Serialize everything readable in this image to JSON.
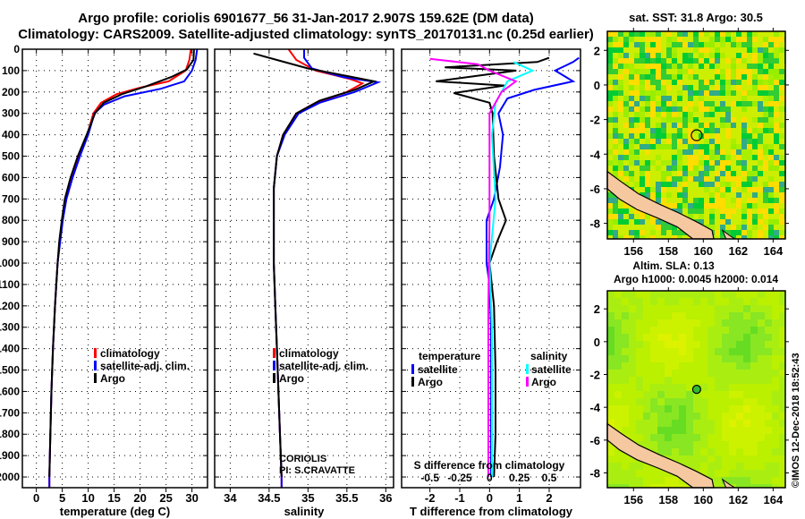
{
  "title_line1": "Argo profile: coriolis 6901677_56 31-Jan-2017 2.907S 159.62E (DM data)",
  "title_line2": "Climatology: CARS2009. Satellite-adjusted climatology: synTS_20170131.nc (0.25d earlier)",
  "copyright": "©IMOS 12-Dec-2018 18:52:43",
  "colors": {
    "climatology": "#ff0000",
    "satellite": "#0000ff",
    "argo": "#000000",
    "s_satellite": "#00ffff",
    "s_argo": "#ff00ff"
  },
  "chart_data": [
    {
      "type": "line",
      "name": "temperature",
      "xlabel": "temperature (deg C)",
      "ylim": [
        2050,
        0
      ],
      "xlim": [
        -2.7,
        33
      ],
      "xticks": [
        "0",
        "5",
        "10",
        "15",
        "20",
        "25",
        "30"
      ],
      "xtick_values": [
        0,
        5,
        10,
        15,
        20,
        25,
        30
      ],
      "yticks": [
        "0",
        "100",
        "200",
        "300",
        "400",
        "500",
        "600",
        "700",
        "800",
        "900",
        "1000",
        "1100",
        "1200",
        "1300",
        "1400",
        "1500",
        "1600",
        "1700",
        "1800",
        "1900",
        "2000"
      ],
      "legend": [
        "climatology",
        "satellite-adj. clim.",
        "Argo"
      ],
      "series": [
        {
          "name": "climatology",
          "color": "#ff0000",
          "points": [
            [
              29.8,
              0
            ],
            [
              29.5,
              50
            ],
            [
              28.8,
              100
            ],
            [
              25.5,
              150
            ],
            [
              20,
              180
            ],
            [
              15.5,
              210
            ],
            [
              12.5,
              250
            ],
            [
              11,
              300
            ],
            [
              9.8,
              400
            ],
            [
              8.2,
              500
            ],
            [
              6.8,
              600
            ],
            [
              5.6,
              700
            ],
            [
              5,
              800
            ],
            [
              4.5,
              900
            ],
            [
              4.1,
              1000
            ],
            [
              3.6,
              1200
            ],
            [
              3.2,
              1400
            ],
            [
              2.9,
              1600
            ],
            [
              2.7,
              1800
            ],
            [
              2.5,
              2000
            ],
            [
              2.5,
              2050
            ]
          ]
        },
        {
          "name": "satellite-adj. clim.",
          "color": "#0000ff",
          "points": [
            [
              31,
              0
            ],
            [
              30.7,
              50
            ],
            [
              30,
              100
            ],
            [
              28.5,
              150
            ],
            [
              24,
              185
            ],
            [
              17,
              220
            ],
            [
              13,
              260
            ],
            [
              11.2,
              300
            ],
            [
              10,
              400
            ],
            [
              8.4,
              500
            ],
            [
              7,
              600
            ],
            [
              5.8,
              700
            ],
            [
              5.1,
              800
            ],
            [
              4.6,
              900
            ],
            [
              4.1,
              1000
            ],
            [
              3.6,
              1200
            ],
            [
              3.2,
              1400
            ],
            [
              2.9,
              1600
            ],
            [
              2.7,
              1800
            ],
            [
              2.5,
              2000
            ],
            [
              2.5,
              2050
            ]
          ]
        },
        {
          "name": "Argo",
          "color": "#000000",
          "points": [
            [
              30.4,
              0
            ],
            [
              30.3,
              50
            ],
            [
              29,
              95
            ],
            [
              26,
              130
            ],
            [
              21,
              175
            ],
            [
              16.5,
              210
            ],
            [
              13,
              250
            ],
            [
              11.3,
              300
            ],
            [
              9.7,
              400
            ],
            [
              8,
              500
            ],
            [
              6.6,
              600
            ],
            [
              5.5,
              700
            ],
            [
              4.9,
              800
            ],
            [
              4.4,
              900
            ],
            [
              4.1,
              1000
            ],
            [
              3.6,
              1200
            ],
            [
              3.2,
              1400
            ],
            [
              2.9,
              1600
            ],
            [
              2.7,
              1800
            ],
            [
              2.5,
              2000
            ]
          ]
        }
      ]
    },
    {
      "type": "line",
      "name": "salinity",
      "xlabel": "salinity",
      "ylim": [
        2050,
        0
      ],
      "xlim": [
        33.8,
        36.1
      ],
      "xticks": [
        "34",
        "34.5",
        "35",
        "35.5",
        "36"
      ],
      "xtick_values": [
        34,
        34.5,
        35,
        35.5,
        36
      ],
      "legend": [
        "climatology",
        "satellite-adj. clim.",
        "Argo"
      ],
      "annotation": [
        "CORIOLIS",
        "PI: S.CRAVATTE"
      ],
      "series": [
        {
          "name": "climatology",
          "color": "#ff0000",
          "points": [
            [
              34.75,
              0
            ],
            [
              34.85,
              50
            ],
            [
              35.1,
              100
            ],
            [
              35.55,
              140
            ],
            [
              35.7,
              160
            ],
            [
              35.5,
              200
            ],
            [
              35.1,
              250
            ],
            [
              34.85,
              300
            ],
            [
              34.68,
              400
            ],
            [
              34.6,
              500
            ],
            [
              34.56,
              650
            ],
            [
              34.56,
              800
            ],
            [
              34.56,
              1000
            ],
            [
              34.58,
              1200
            ],
            [
              34.6,
              1400
            ],
            [
              34.62,
              1600
            ],
            [
              34.64,
              1800
            ],
            [
              34.66,
              2000
            ],
            [
              34.66,
              2050
            ]
          ]
        },
        {
          "name": "satellite-adj. clim.",
          "color": "#0000ff",
          "points": [
            [
              34.95,
              0
            ],
            [
              34.95,
              40
            ],
            [
              35.05,
              90
            ],
            [
              35.45,
              130
            ],
            [
              35.9,
              155
            ],
            [
              35.6,
              200
            ],
            [
              35.15,
              250
            ],
            [
              34.88,
              300
            ],
            [
              34.7,
              400
            ],
            [
              34.6,
              500
            ],
            [
              34.56,
              650
            ],
            [
              34.56,
              800
            ],
            [
              34.56,
              1000
            ],
            [
              34.58,
              1200
            ],
            [
              34.6,
              1400
            ],
            [
              34.62,
              1600
            ],
            [
              34.64,
              1800
            ],
            [
              34.66,
              2000
            ],
            [
              34.66,
              2050
            ]
          ]
        },
        {
          "name": "Argo",
          "color": "#000000",
          "points": [
            [
              34.3,
              20
            ],
            [
              34.6,
              50
            ],
            [
              35.0,
              90
            ],
            [
              35.5,
              125
            ],
            [
              35.85,
              150
            ],
            [
              35.6,
              190
            ],
            [
              35.15,
              240
            ],
            [
              34.85,
              300
            ],
            [
              34.68,
              400
            ],
            [
              34.6,
              500
            ],
            [
              34.56,
              650
            ],
            [
              34.56,
              800
            ],
            [
              34.56,
              1000
            ],
            [
              34.58,
              1200
            ],
            [
              34.6,
              1400
            ],
            [
              34.62,
              1600
            ],
            [
              34.64,
              1800
            ],
            [
              34.66,
              2000
            ]
          ]
        }
      ]
    },
    {
      "type": "line",
      "name": "differences",
      "xlabel": "T difference from climatology",
      "xlabel_top": "S difference from climatology",
      "ylim": [
        2050,
        0
      ],
      "xlim": [
        -2.95,
        3.05
      ],
      "xticks": [
        "-2",
        "-1",
        "0",
        "1",
        "2"
      ],
      "xtick_values": [
        -2,
        -1,
        0,
        1,
        2
      ],
      "s_ticks": [
        "-0.5",
        "-0.25",
        "0",
        "0.25",
        "0.5"
      ],
      "s_tick_values": [
        -0.5,
        -0.25,
        0,
        0.25,
        0.5
      ],
      "legend_temperature": {
        "title": "temperature",
        "items": [
          "satellite",
          "Argo"
        ]
      },
      "legend_salinity": {
        "title": "salinity",
        "items": [
          "satellite",
          "Argo"
        ]
      },
      "series": [
        {
          "name": "T satellite",
          "color": "#0000ff",
          "units": "T",
          "points": [
            [
              3,
              40
            ],
            [
              2.8,
              60
            ],
            [
              2.2,
              100
            ],
            [
              2.8,
              150
            ],
            [
              1.5,
              190
            ],
            [
              0.6,
              230
            ],
            [
              0.3,
              300
            ],
            [
              0.45,
              400
            ],
            [
              0.35,
              550
            ],
            [
              0.15,
              700
            ],
            [
              -0.1,
              800
            ],
            [
              -0.1,
              1000
            ],
            [
              0,
              1100
            ],
            [
              0.05,
              1300
            ],
            [
              0.05,
              1600
            ],
            [
              0.05,
              2000
            ]
          ]
        },
        {
          "name": "T Argo",
          "color": "#000000",
          "units": "T",
          "points": [
            [
              2,
              40
            ],
            [
              1.6,
              60
            ],
            [
              -1.5,
              85
            ],
            [
              0.9,
              100
            ],
            [
              -1.8,
              150
            ],
            [
              0.5,
              170
            ],
            [
              -1.2,
              205
            ],
            [
              0,
              250
            ],
            [
              0.1,
              300
            ],
            [
              0.15,
              500
            ],
            [
              0.3,
              700
            ],
            [
              0.55,
              800
            ],
            [
              0.25,
              900
            ],
            [
              0,
              1000
            ],
            [
              0.15,
              1200
            ],
            [
              0.2,
              1500
            ],
            [
              0.2,
              1800
            ],
            [
              0.15,
              2000
            ]
          ]
        },
        {
          "name": "S satellite",
          "color": "#00ffff",
          "units": "S",
          "points": [
            [
              0.2,
              60
            ],
            [
              0.36,
              100
            ],
            [
              0.15,
              150
            ],
            [
              0.05,
              250
            ],
            [
              0.02,
              400
            ],
            [
              0.05,
              700
            ],
            [
              0,
              1000
            ],
            [
              0.02,
              1300
            ],
            [
              0.02,
              1600
            ],
            [
              0.02,
              2000
            ]
          ]
        },
        {
          "name": "S Argo",
          "color": "#ff00ff",
          "units": "S",
          "points": [
            [
              -0.5,
              45
            ],
            [
              -0.1,
              70
            ],
            [
              0.0,
              100
            ],
            [
              0.22,
              150
            ],
            [
              0.1,
              200
            ],
            [
              0,
              300
            ],
            [
              0,
              500
            ],
            [
              0,
              800
            ],
            [
              -0.01,
              1200
            ],
            [
              -0.01,
              1600
            ],
            [
              -0.01,
              2000
            ]
          ]
        }
      ]
    },
    {
      "type": "heatmap",
      "name": "sst-map",
      "title": "sat. SST: 31.8 Argo: 30.5",
      "xticks": [
        "156",
        "158",
        "160",
        "162",
        "164"
      ],
      "xtick_values": [
        156,
        158,
        160,
        162,
        164
      ],
      "yticks": [
        "2",
        "0",
        "-2",
        "-4",
        "-6",
        "-8"
      ],
      "ytick_values": [
        2,
        0,
        -2,
        -4,
        -6,
        -8
      ],
      "xlim": [
        154.5,
        164.7
      ],
      "ylim": [
        -8.9,
        3.1
      ],
      "argo_position": [
        159.62,
        -2.907
      ]
    },
    {
      "type": "heatmap",
      "name": "sla-map",
      "title": "Altim. SLA: 0.13",
      "subtitle": "Argo h1000: 0.0045 h2000: 0.014",
      "xticks": [
        "156",
        "158",
        "160",
        "162",
        "164"
      ],
      "xtick_values": [
        156,
        158,
        160,
        162,
        164
      ],
      "yticks": [
        "2",
        "0",
        "-2",
        "-4",
        "-6",
        "-8"
      ],
      "ytick_values": [
        2,
        0,
        -2,
        -4,
        -6,
        -8
      ],
      "xlim": [
        154.5,
        164.7
      ],
      "ylim": [
        -8.9,
        3.1
      ],
      "argo_position": [
        159.62,
        -2.907
      ]
    }
  ]
}
